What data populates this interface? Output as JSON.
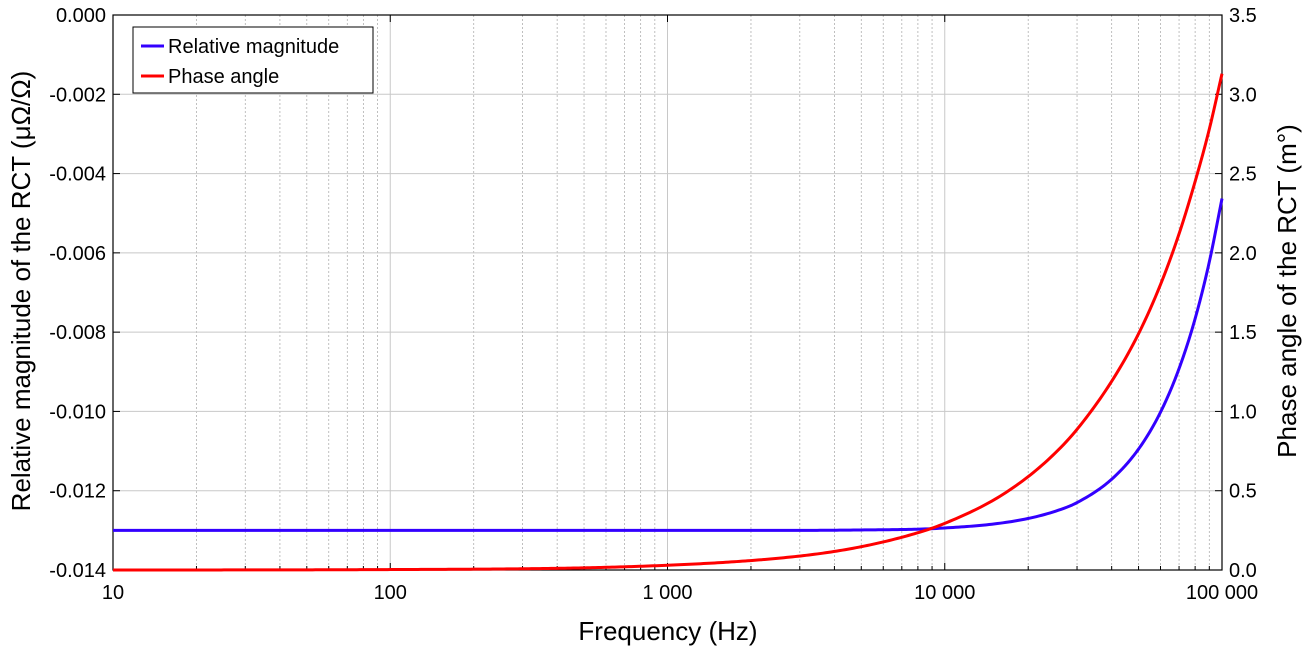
{
  "chart_data": {
    "type": "line",
    "xlabel": "Frequency (Hz)",
    "ylabel_left": "Relative magnitude of the RCT (μΩ/Ω)",
    "ylabel_right": "Phase angle of the RCT (m°)",
    "x_scale": "log",
    "xlim": [
      10,
      100000
    ],
    "ylim_left": [
      -0.014,
      0.0
    ],
    "ylim_right": [
      0.0,
      3.5
    ],
    "grid": true,
    "legend_position": "top-left",
    "x_ticks": [
      {
        "value": 10,
        "label": "10"
      },
      {
        "value": 100,
        "label": "100"
      },
      {
        "value": 1000,
        "label": "1 000"
      },
      {
        "value": 10000,
        "label": "10 000"
      },
      {
        "value": 100000,
        "label": "100 000"
      }
    ],
    "y_ticks_left": [
      {
        "value": 0.0,
        "label": "0.000"
      },
      {
        "value": -0.002,
        "label": "-0.002"
      },
      {
        "value": -0.004,
        "label": "-0.004"
      },
      {
        "value": -0.006,
        "label": "-0.006"
      },
      {
        "value": -0.008,
        "label": "-0.008"
      },
      {
        "value": -0.01,
        "label": "-0.010"
      },
      {
        "value": -0.012,
        "label": "-0.012"
      },
      {
        "value": -0.014,
        "label": "-0.014"
      }
    ],
    "y_ticks_right": [
      {
        "value": 3.5,
        "label": "3.5"
      },
      {
        "value": 3.0,
        "label": "3.0"
      },
      {
        "value": 2.5,
        "label": "2.5"
      },
      {
        "value": 2.0,
        "label": "2.0"
      },
      {
        "value": 1.5,
        "label": "1.5"
      },
      {
        "value": 1.0,
        "label": "1.0"
      },
      {
        "value": 0.5,
        "label": "0.5"
      },
      {
        "value": 0.0,
        "label": "0.0"
      }
    ],
    "series": [
      {
        "name": "Relative magnitude",
        "axis": "left",
        "color": "#3300ff",
        "x": [
          10,
          100,
          1000,
          3000,
          5000,
          8000,
          10000,
          15000,
          20000,
          25000,
          30000,
          40000,
          50000,
          60000,
          70000,
          80000,
          90000,
          100000
        ],
        "y": [
          -0.013,
          -0.013,
          -0.013,
          -0.013,
          -0.01299,
          -0.01297,
          -0.01294,
          -0.01284,
          -0.0127,
          -0.01252,
          -0.0123,
          -0.01171,
          -0.01095,
          -0.01002,
          -0.00892,
          -0.00766,
          -0.00623,
          -0.00463
        ]
      },
      {
        "name": "Phase angle",
        "axis": "right",
        "color": "#ff0000",
        "x": [
          10,
          100,
          1000,
          3000,
          5000,
          8000,
          10000,
          15000,
          20000,
          25000,
          30000,
          40000,
          50000,
          60000,
          70000,
          80000,
          90000,
          100000
        ],
        "y": [
          0.0,
          0.0028,
          0.03,
          0.088,
          0.147,
          0.235,
          0.294,
          0.441,
          0.589,
          0.737,
          0.887,
          1.19,
          1.49,
          1.8,
          2.12,
          2.45,
          2.78,
          3.13
        ]
      }
    ]
  }
}
